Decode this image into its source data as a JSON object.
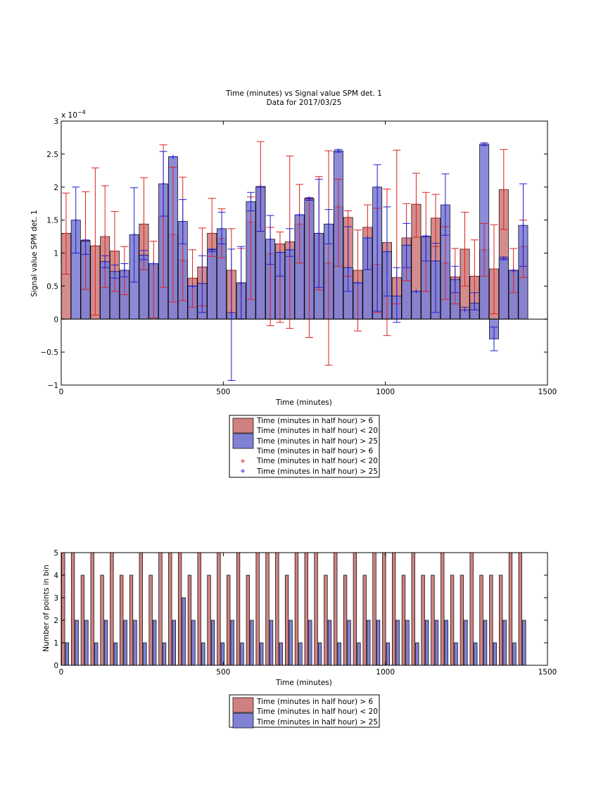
{
  "chart_data": [
    {
      "type": "bar",
      "title": "Time (minutes) vs Signal value SPM det. 1",
      "subtitle": "Data for 2017/03/25",
      "xlabel": "Time (minutes)",
      "ylabel": "Signal value SPM det. 1",
      "y_exponent": "x 10",
      "y_exponent_power": "−4",
      "xlim": [
        0,
        1500
      ],
      "ylim": [
        -1,
        3
      ],
      "xticks": [
        "0",
        "500",
        "1000",
        "1500"
      ],
      "yticks": [
        "−1",
        "−0.5",
        "0",
        "0.5",
        "1",
        "1.5",
        "2",
        "2.5",
        "3"
      ],
      "grid": false,
      "legend_position": "below",
      "legend": [
        "Time (minutes in half hour) > 6",
        "Time (minutes in half hour) < 20",
        "Time (minutes in half hour) > 25",
        "Time (minutes in half hour) > 6",
        "Time (minutes in half hour) < 20",
        "Time (minutes in half hour) > 25"
      ],
      "colors": {
        "red_bar": "#d08080",
        "blue_bar": "#8080d4",
        "red_err": "#dd2020",
        "blue_err": "#1e1ed4"
      },
      "series": [
        {
          "x": [
            15,
            75,
            105,
            135,
            165,
            195,
            255,
            285,
            315,
            345,
            375,
            405,
            435,
            465,
            495,
            525,
            555,
            585,
            615,
            645,
            675,
            705,
            735,
            765,
            795,
            825,
            855,
            885,
            915,
            945,
            975,
            1005,
            1035,
            1065,
            1095,
            1125,
            1155,
            1185,
            1215,
            1245,
            1275,
            1305,
            1335,
            1365,
            1395,
            1425
          ],
          "values": [
            1.3,
            1.19,
            1.11,
            1.25,
            1.03,
            0.74,
            1.44,
            0.84,
            1.56,
            1.28,
            0.89,
            0.62,
            0.79,
            1.3,
            1.22,
            0.74,
            0.54,
            1.47,
            2.01,
            0.99,
            1.14,
            1.17,
            1.44,
            1.83,
            1.3,
            0.85,
            1.7,
            1.54,
            0.74,
            1.39,
            0.83,
            1.16,
            0.63,
            1.23,
            1.74,
            1.25,
            1.53,
            0.85,
            0.64,
            1.06,
            0.65,
            1.05,
            0.76,
            1.96,
            0.73,
            1.1
          ],
          "err_low": [
            0.68,
            0.45,
            0.06,
            0.48,
            0.42,
            0.37,
            0.75,
            0.02,
            0.48,
            0.26,
            0.28,
            0.18,
            0.2,
            0.95,
            0.93,
            0.1,
            0.0,
            0.3,
            1.33,
            -0.1,
            -0.05,
            -0.14,
            0.85,
            -0.28,
            0.44,
            -0.7,
            0.8,
            0.65,
            -0.18,
            0.75,
            0.1,
            -0.25,
            0.23,
            0.58,
            1.24,
            0.42,
            1.1,
            0.3,
            0.23,
            0.5,
            0.14,
            0.65,
            0.08,
            1.36,
            0.4,
            0.63
          ],
          "err_high": [
            1.91,
            1.93,
            2.29,
            2.02,
            1.63,
            1.1,
            2.14,
            1.18,
            2.64,
            2.3,
            2.15,
            1.05,
            1.38,
            1.83,
            1.67,
            1.37,
            1.07,
            1.85,
            2.69,
            1.39,
            1.32,
            2.47,
            2.04,
            1.83,
            2.16,
            2.55,
            2.12,
            1.64,
            1.35,
            1.73,
            1.68,
            1.97,
            2.56,
            1.75,
            2.21,
            1.92,
            1.89,
            1.4,
            1.07,
            1.62,
            1.2,
            1.45,
            1.43,
            2.57,
            1.07,
            1.5
          ]
        },
        {
          "x": [
            45,
            75,
            135,
            165,
            195,
            225,
            255,
            285,
            315,
            345,
            375,
            405,
            435,
            465,
            495,
            525,
            555,
            585,
            615,
            645,
            675,
            705,
            735,
            765,
            795,
            825,
            855,
            885,
            915,
            945,
            975,
            1005,
            1035,
            1065,
            1095,
            1125,
            1155,
            1185,
            1215,
            1245,
            1275,
            1305,
            1335,
            1365,
            1395,
            1425
          ],
          "values": [
            1.5,
            1.18,
            0.87,
            0.72,
            0.74,
            1.28,
            0.97,
            0.84,
            2.05,
            2.46,
            1.48,
            0.5,
            0.54,
            1.05,
            1.37,
            0.1,
            0.55,
            1.78,
            2.0,
            1.21,
            1.01,
            1.05,
            1.58,
            1.82,
            1.3,
            1.44,
            2.55,
            0.78,
            0.55,
            1.23,
            2.0,
            1.02,
            0.35,
            1.12,
            0.42,
            1.25,
            0.88,
            1.73,
            0.6,
            0.14,
            0.24,
            2.65,
            -0.3,
            0.92,
            0.74,
            1.42
          ],
          "err_low": [
            1.0,
            0.98,
            0.78,
            0.62,
            0.64,
            0.56,
            0.9,
            0.84,
            1.56,
            2.46,
            1.14,
            0.5,
            0.1,
            1.02,
            1.14,
            -0.93,
            0.0,
            1.64,
            1.33,
            0.83,
            0.65,
            0.95,
            1.58,
            1.8,
            0.48,
            1.14,
            2.53,
            0.42,
            0.55,
            0.75,
            0.12,
            0.35,
            -0.05,
            0.78,
            0.42,
            0.88,
            0.1,
            1.27,
            0.4,
            0.14,
            0.14,
            2.63,
            -0.48,
            0.9,
            0.74,
            0.8
          ],
          "err_high": [
            2.0,
            1.2,
            0.96,
            0.82,
            0.84,
            1.99,
            1.04,
            0.84,
            2.54,
            2.46,
            1.81,
            0.5,
            0.96,
            1.06,
            1.62,
            1.06,
            1.1,
            1.92,
            2.0,
            1.57,
            1.01,
            1.37,
            1.58,
            1.84,
            2.12,
            1.66,
            2.57,
            1.4,
            0.55,
            1.23,
            2.34,
            1.7,
            0.78,
            1.45,
            0.42,
            1.26,
            1.15,
            2.2,
            0.8,
            0.18,
            0.4,
            2.67,
            -0.12,
            0.94,
            0.74,
            2.05
          ]
        }
      ]
    },
    {
      "type": "bar",
      "xlabel": "Time (minutes)",
      "ylabel": "Number of points in bin",
      "xlim": [
        0,
        1500
      ],
      "ylim": [
        0,
        5
      ],
      "xticks": [
        "0",
        "500",
        "1000",
        "1500"
      ],
      "yticks": [
        "0",
        "1",
        "2",
        "3",
        "4",
        "5"
      ],
      "grid": false,
      "legend_position": "below",
      "legend": [
        "Time (minutes in half hour) > 6",
        "Time (minutes in half hour) < 20",
        "Time (minutes in half hour) > 25"
      ],
      "colors": {
        "red_bar": "#d08080",
        "blue_bar": "#8080d4"
      },
      "series": [
        {
          "x": [
            6,
            36,
            66,
            96,
            126,
            156,
            186,
            216,
            246,
            276,
            306,
            336,
            366,
            396,
            426,
            456,
            486,
            516,
            546,
            576,
            606,
            636,
            666,
            696,
            726,
            756,
            786,
            816,
            846,
            876,
            906,
            936,
            966,
            996,
            1026,
            1056,
            1086,
            1116,
            1146,
            1176,
            1206,
            1236,
            1266,
            1296,
            1326,
            1356,
            1386,
            1416
          ],
          "values": [
            5,
            5,
            4,
            5,
            4,
            5,
            4,
            4,
            5,
            4,
            5,
            5,
            5,
            4,
            5,
            4,
            5,
            4,
            5,
            4,
            5,
            5,
            5,
            4,
            5,
            5,
            5,
            4,
            5,
            4,
            5,
            4,
            5,
            5,
            5,
            4,
            5,
            4,
            4,
            5,
            4,
            4,
            5,
            4,
            4,
            4,
            5,
            5
          ]
        },
        {
          "x": [
            18,
            48,
            78,
            108,
            138,
            168,
            198,
            228,
            258,
            288,
            318,
            348,
            378,
            408,
            438,
            468,
            498,
            528,
            558,
            588,
            618,
            648,
            678,
            708,
            738,
            768,
            798,
            828,
            858,
            888,
            918,
            948,
            978,
            1008,
            1038,
            1068,
            1098,
            1128,
            1158,
            1188,
            1218,
            1248,
            1278,
            1308,
            1338,
            1368,
            1398,
            1428
          ],
          "values": [
            1,
            2,
            2,
            1,
            2,
            1,
            2,
            2,
            1,
            2,
            1,
            2,
            3,
            2,
            1,
            2,
            1,
            2,
            1,
            2,
            1,
            2,
            1,
            2,
            1,
            2,
            1,
            2,
            1,
            2,
            1,
            2,
            2,
            1,
            2,
            2,
            1,
            2,
            2,
            2,
            1,
            2,
            1,
            2,
            1,
            2,
            1,
            2
          ]
        }
      ]
    }
  ]
}
